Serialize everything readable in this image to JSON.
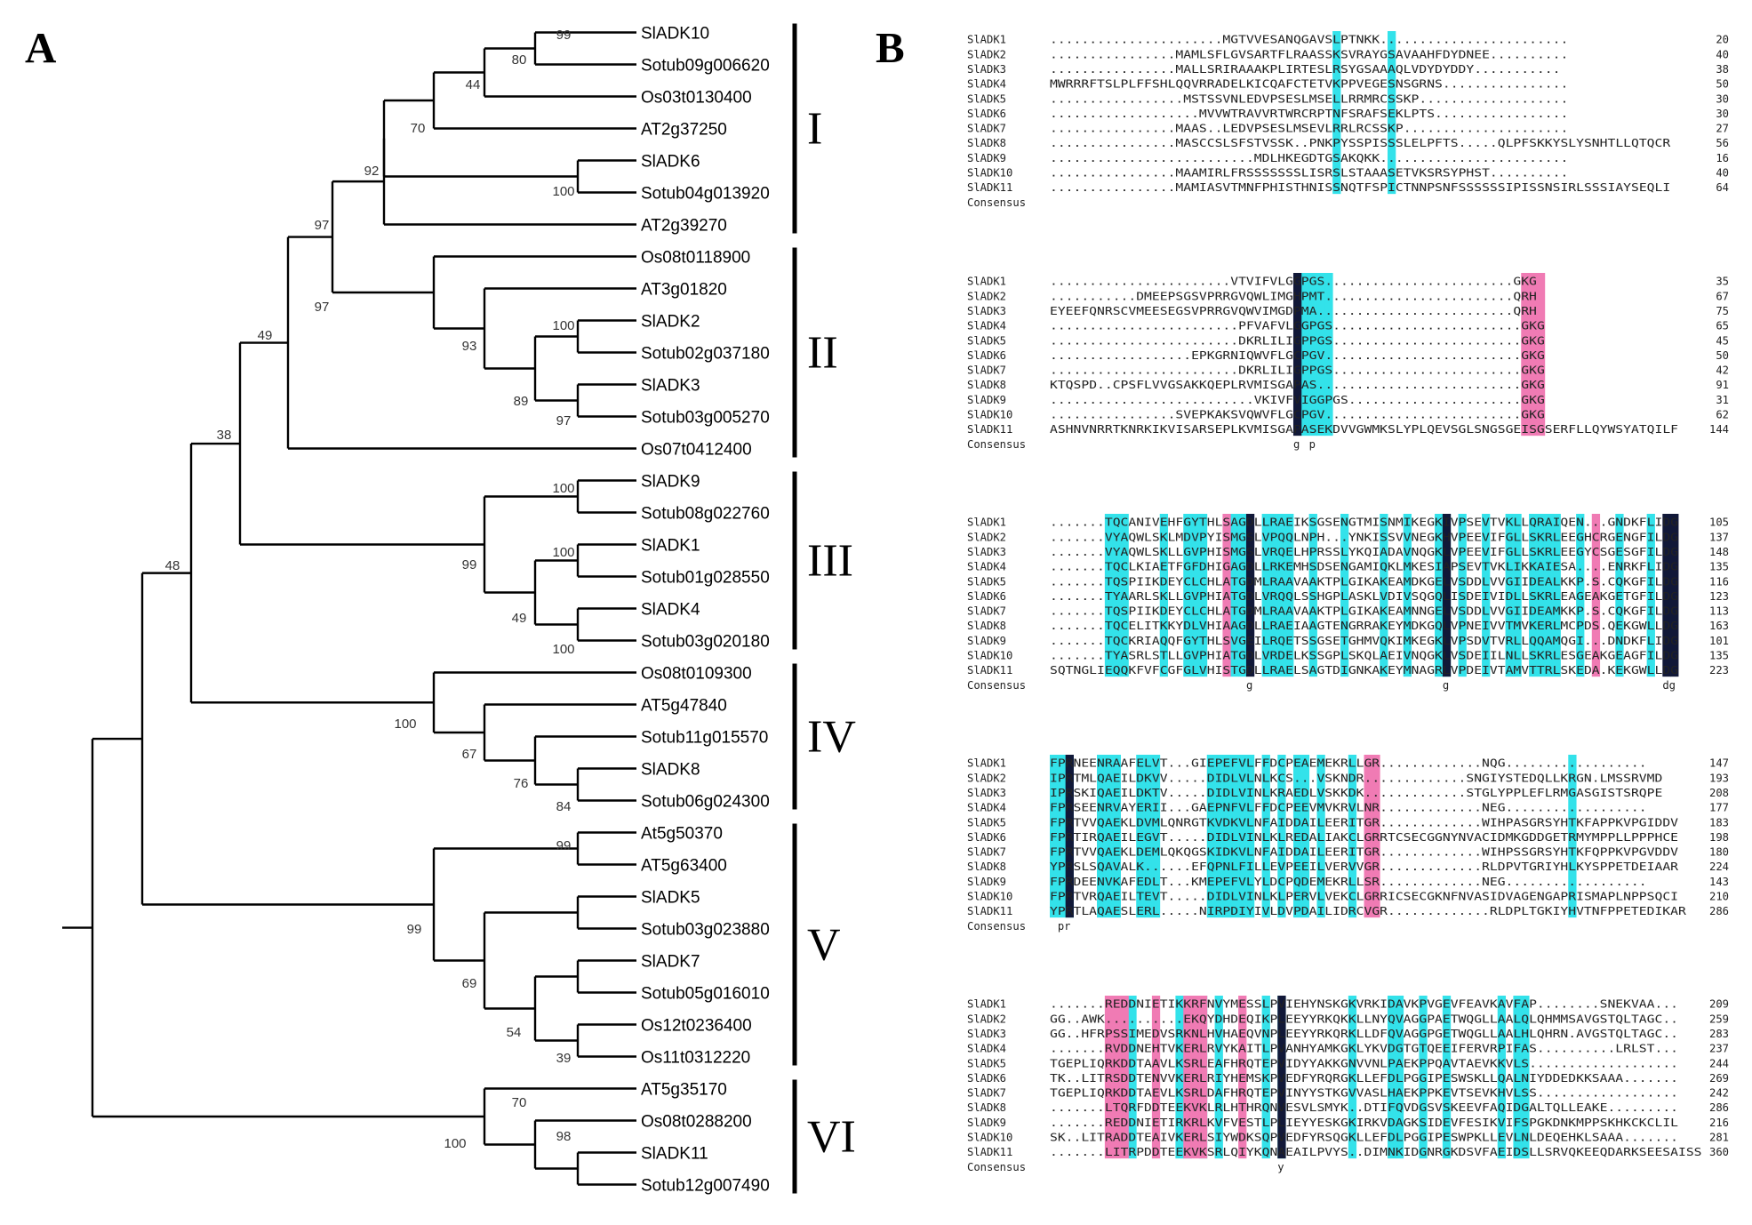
{
  "panel_a": {
    "label": "A",
    "groups": [
      "I",
      "II",
      "III",
      "IV",
      "V",
      "VI"
    ],
    "taxa": [
      "SlADK10",
      "Sotub09g006620",
      "Os03t0130400",
      "AT2g37250",
      "SlADK6",
      "Sotub04g013920",
      "AT2g39270",
      "Os08t0118900",
      "AT3g01820",
      "SlADK2",
      "Sotub02g037180",
      "SlADK3",
      "Sotub03g005270",
      "Os07t0412400",
      "SlADK9",
      "Sotub08g022760",
      "SlADK1",
      "Sotub01g028550",
      "SlADK4",
      "Sotub03g020180",
      "Os08t0109300",
      "AT5g47840",
      "Sotub11g015570",
      "SlADK8",
      "Sotub06g024300",
      "At5g50370",
      "AT5g63400",
      "SlADK5",
      "Sotub03g023880",
      "SlADK7",
      "Sotub05g016010",
      "Os12t0236400",
      "Os11t0312220",
      "AT5g35170",
      "Os08t0288200",
      "SlADK11",
      "Sotub12g007490"
    ],
    "bootstrap": [
      "99",
      "80",
      "44",
      "70",
      "100",
      "92",
      "97",
      "100",
      "93",
      "89",
      "97",
      "97",
      "49",
      "38",
      "100",
      "100",
      "49",
      "99",
      "48",
      "100",
      "76",
      "67",
      "100",
      "84",
      "99",
      "39",
      "54",
      "69",
      "99",
      "98",
      "70",
      "100"
    ]
  },
  "panel_b": {
    "label": "B",
    "consensus_label": "Consensus",
    "names": [
      "SlADK1",
      "SlADK2",
      "SlADK3",
      "SlADK4",
      "SlADK5",
      "SlADK6",
      "SlADK7",
      "SlADK8",
      "SlADK9",
      "SlADK10",
      "SlADK11"
    ],
    "blocks": [
      {
        "rows": [
          "......................MGTVVESANQGAVSLPTNKK........................",
          "................MAMLSFLGVSARTFLRAASSKSVRAYGSAVAAHFDYDNEE..........",
          "................MALLSRIRAAAKPLIRTESLRSYGSAAAQLVDYDYDDY...........",
          "MWRRRFTSLPLFFSHLQQVRRADELKICQAFCTETVKPPVEGESNSGRNS................",
          ".................MSTSSVNLEDVPSESLMSELLRRMRCSSKP...................",
          "...................MVVWTRAVVRTWRCRPTNFSRAFSEKLPTS.................",
          "................MAAS..LEDVPSESLMSEVLRRLRCSSKP.....................",
          "................MASCCSLSFSTVSSK..PNKPYSSPISSSLELPFTS.....QLPFSKKYSLYSNHTLLQTQCR",
          "..........................MDLHKEGDTGSAKQKK........................",
          "................MAAMIRLFRSSSSSSSLISRSLSTAAASETVKSRSYPHST..........",
          "................MAMIASVTMNFPHISTHNISSNQTFSPICTNNPSNFSSSSSSIPISSNSIRLSSSIAYSEQLI"
        ],
        "ends": [
          "20",
          "40",
          "38",
          "50",
          "30",
          "30",
          "27",
          "56",
          "16",
          "40",
          "64"
        ],
        "consensus": ""
      },
      {
        "rows": [
          ".......................VTVIFVLGGPGS........................GKG",
          "...........DMEEPSGSVPRRGVQWLIMGHPMT........................QRH",
          "EYEEFQNRSCVMEESEGSVPRRGVQWVIMGDPMA.........................QRH",
          "........................PFVAFVLGGPGS........................GKG",
          "........................DKRLILIGPPGS........................GKG",
          "..................EPKGRNIQWVFLGCPGV.........................GKG",
          "........................DKRLILIGPPGS........................GKG",
          "KTQSPD..CPSFLVVGSAKKQEPLRVMISGAPAS..........................GKG",
          "..........................VKIVFVIGGPGS......................GKG",
          "................SVEPKAKSVQWVFLGCPGV.........................GKG",
          "ASHNVNRRTKNRKIKVISARSEPLKVMISGAPASEKDVVGWMKSLYPLQEVSGLSNGSGEISGSERFLLQYWSYATQILF"
        ],
        "ends": [
          "35",
          "67",
          "75",
          "65",
          "45",
          "50",
          "42",
          "91",
          "31",
          "62",
          "144"
        ],
        "consensus": "g p"
      },
      {
        "rows": [
          ".......TQCANIVEHFGYTHLSAGDLLRAEIKSGSENGTMISNMIKEGKIVPSEVTVKLLQRAIQEN...GNDKFLIDG",
          ".......VYAQWLSKLMDVPYISMGSLVPQQLNPH...YNKISSVVNEGKHVPEEVIFGLLSKRLEEGHCRGENGFILDG",
          ".......VYAQWLSKLLGVPHISMGSLVRQELHPRSSLYKQIADAVNQGKLVPEEVIFGLLSKRLEEGYCSGESGFILDG",
          ".......TQCLKIAETFGFDHIGAGDLLRKEMHSDSENGAMIQKLMKESIAPSEVTVKLIKKAIESA....ENRKFLIDG",
          ".......TQSPIIKDEYCLCHLATGDMLRAAVAAKTPLGIKAKEAMDKGELVSDDLVVGIIDEALKKP.S.CQKGFILDG",
          ".......TYAARLSKLLGVPHIATGDLVRQQLSSHGPLASKLVDIVSQGQLISDEIVIDLLSKRLEAGEAKGETGFILDG",
          ".......TQSPIIKDEYCLCHLATGDMLRAAVAAKTPLGIKAKEAMNNGELVSDDLVVGIIDEAMKKP.S.CQKGFILDG",
          ".......TQCELITKKYDLVHIAAGDLLRAEIAAGTENGRRAKEYMDKGQLVPNEIVVTMVKERLMCPDS.QEKGWLLDG",
          ".......TQCKRIAQQFGYTHLSVGEILRQETSSGSETGHMVQKIMKEGKLVPSDVTVRLLQQAMQGI...DNDKFLIDG",
          ".......TYASRLSTLLGVPHIATGDLVRDELKSSGPLSKQLAEIVNQGKLVSDEIILNLLSKRLESGEAKGEAGFILDG",
          "SQTNGLIEQQKFVFCGFGLVHISTGDLLRAELSAGTDIGNKAKEYMNAGRLVPDEIVTAMVTTRLSKEDA.KEKGWLLDG"
        ],
        "ends": [
          "105",
          "137",
          "148",
          "135",
          "116",
          "123",
          "113",
          "163",
          "101",
          "135",
          "223"
        ],
        "consensus": "g g dg"
      },
      {
        "rows": [
          "FPRNEENRAAFELVT...GIEPEFVLFFDCPEAEMEKRLLGR.............NQG..................",
          "IPRTMLQAEILDKVV.....DIDLVLNLKCS...VSKNDR.............SNGIYSTEDQLLKRGN.LMSSRVMD",
          "IPRSKIQAEILDKTV.....DIDLVINLKRAEDLVSKKDK.............STGLYPPLEFLRMGASGISTSRQPE",
          "FPRSEENRVAYERII...GAEPNFVLFFDCPEEVMVKRVLNR.............NEG..................",
          "FPRTVVQAEKLDVMLQNRGTKVDKVLNFAIDDAILEERITGR.............WIHPASGRSYHTKFAPPKVPGIDDV",
          "FPRTIRQAEILEGVT.....DIDLVINLKLREDALIAKCLGRRTCSECGGNYNVACIDMKGDDGETRMYMPPLLPPPHCE",
          "FPRTVVQAEKLDEMLQKQGSKIDKVLNFAIDDAILEERITGR.............WIHPSSGRSYHTKFQPPKVPGVDDV",
          "YPRSLSQAVALK......EFQPNLFILLEVPEEILVERVVGR.............RLDPVTGRIYHLKYSPPETDEIAAR",
          "FPRDEENVKAFEDLT...KMEPEFVLYLDCPQDEMEKRLLSR.............NEG..................",
          "FPRTVRQAEILTEVT.....DIDLVINLKLPERVLVEKCLGRRICSECGKNFNVASIDVAGENGAPRISMAPLNPPSQCI",
          "YPRTLAQAESLERL.....NIRPDIYIVLDVPDAILIDRCVGR.............RLDPLTGKIYHVTNFPPETEDIKAR"
        ],
        "ends": [
          "147",
          "193",
          "208",
          "177",
          "183",
          "198",
          "180",
          "224",
          "143",
          "210",
          "286"
        ],
        "consensus": "pr"
      },
      {
        "rows": [
          ".......REDDNIETIKKRFNVYMESSLPVIEHYNSKGKVRKIDAVKPVGEVFEAVKAVFAP........SNEKVAA...",
          "GG..AWK..........EKQYDHDEQIKPLEEYYRKQKKLLNYQVAGGPAETWQGLLAALQLQHMMSAVGSTQLTAGC..",
          "GG..HFRPSSIMEDVSRKNLHVHAEQVNPLEEYYRKQRKLLDFQVAGGPGETWQGLLAALHLQHRN.AVGSTQLTAGC..",
          ".......RVDDNEHTVKERLRVYKAITLPVANHYAMKGKLYKVDGTGTQEEIFERVRPIFAS..........LRLST...",
          "TGEPLIQRKDDTAAVLKSRLEAFHRQTEPVIDYYAKKGNVVNLPAEKPPQAVTAEVKKVLS...................",
          "TK..LITRSDDTENVVKERLRIYHEMSKPVEDFYRQRGKLLEFDLPGGIPESWSKLLQALNIYDDEDKKSAAA.......",
          "TGEPLIQRKDDTAEVLKSRLDAFHRQTEPVINYYSTKGVVASLHAEKPPKEVTSEVKHVLSS..................",
          ".......LTQRFDDTEEKVKLRLHTHRQNVESVLSMYK..DTIFQVDGSVSKEEVFAQIDGALTQLLEAKE.........",
          ".......REDDNIETIRKRLKVFVESTLPLIEYYESKGKIRKVDAGKSIDEVFESIKVIFSPGKDNKMPPSKHKCKCLIL",
          "SK..LITRADDTEAIVKERLSIYWDKSQPVEDFYRSQGKLLEFDLPGGIPESWPKLLEVLNLDEQEHKLSAAA.......",
          ".......LITRPDDTEEKVKSRLQIYKQNAEAILPVYS..DIMNKIDGNRGKDSVFAEIDSLLSRVQKEEQDARKSEESAISS"
        ],
        "ends": [
          "209",
          "259",
          "283",
          "237",
          "244",
          "269",
          "242",
          "286",
          "216",
          "281",
          "360"
        ],
        "consensus": "y"
      }
    ]
  },
  "colors": {
    "black": "#000000",
    "cyan": "#33e2ea",
    "pink": "#f07bb4",
    "navy": "#111838"
  }
}
